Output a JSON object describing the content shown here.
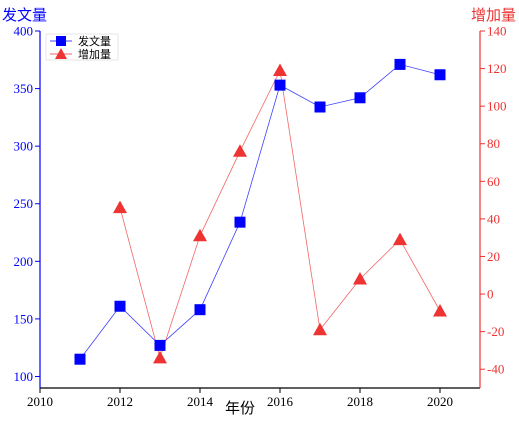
{
  "chart_data": {
    "type": "line",
    "xlabel": "年份",
    "ylabel_left": "发文量",
    "ylabel_right": "增加量",
    "x": [
      2011,
      2012,
      2013,
      2014,
      2015,
      2016,
      2017,
      2018,
      2019,
      2020
    ],
    "xlim": [
      2010,
      2021
    ],
    "xticks": [
      2010,
      2012,
      2014,
      2016,
      2018,
      2020
    ],
    "ylim_left": [
      90,
      400
    ],
    "yticks_left": [
      100,
      150,
      200,
      250,
      300,
      350,
      400
    ],
    "ylim_right": [
      -50,
      140
    ],
    "yticks_right": [
      -40,
      -20,
      0,
      20,
      40,
      60,
      80,
      100,
      120,
      140
    ],
    "grid": false,
    "legend_position": "top-left",
    "series": [
      {
        "name": "发文量",
        "axis": "left",
        "marker": "square",
        "color": "#0000ff",
        "x": [
          2011,
          2012,
          2013,
          2014,
          2015,
          2016,
          2017,
          2018,
          2019,
          2020
        ],
        "values": [
          115,
          161,
          127,
          158,
          234,
          353,
          334,
          342,
          371,
          362
        ]
      },
      {
        "name": "增加量",
        "axis": "right",
        "marker": "triangle",
        "color": "#ee3333",
        "x": [
          2012,
          2013,
          2014,
          2015,
          2016,
          2017,
          2018,
          2019,
          2020
        ],
        "values": [
          46,
          -34,
          31,
          76,
          119,
          -19,
          8,
          29,
          -9
        ]
      }
    ]
  }
}
